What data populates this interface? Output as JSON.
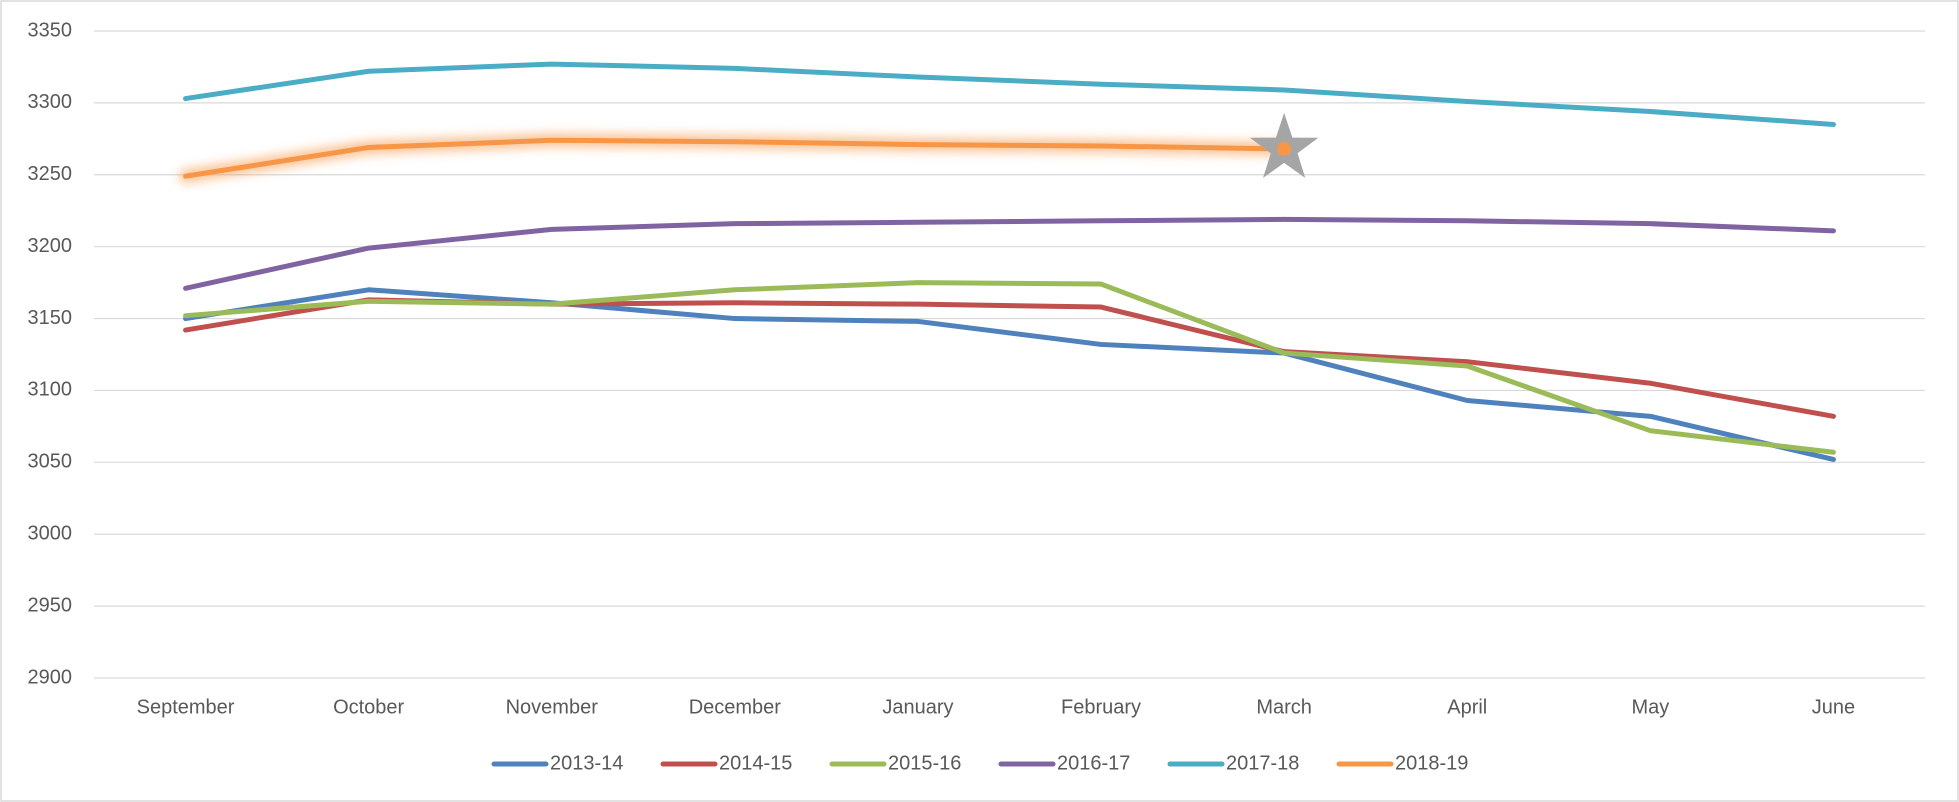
{
  "chart_data": {
    "type": "line",
    "categories": [
      "September",
      "October",
      "November",
      "December",
      "January",
      "February",
      "March",
      "April",
      "May",
      "June"
    ],
    "series": [
      {
        "name": "2013-14",
        "color": "#4f81bd",
        "values": [
          3150,
          3170,
          3161,
          3150,
          3148,
          3132,
          3126,
          3093,
          3082,
          3052
        ]
      },
      {
        "name": "2014-15",
        "color": "#c0504d",
        "values": [
          3142,
          3163,
          3160,
          3161,
          3160,
          3158,
          3127,
          3120,
          3105,
          3082
        ]
      },
      {
        "name": "2015-16",
        "color": "#9bbb59",
        "values": [
          3152,
          3162,
          3160,
          3170,
          3175,
          3174,
          3126,
          3117,
          3072,
          3057
        ]
      },
      {
        "name": "2016-17",
        "color": "#8064a2",
        "values": [
          3171,
          3199,
          3212,
          3216,
          3217,
          3218,
          3219,
          3218,
          3216,
          3211
        ]
      },
      {
        "name": "2017-18",
        "color": "#4bacc6",
        "values": [
          3303,
          3322,
          3327,
          3324,
          3318,
          3313,
          3309,
          3301,
          3294,
          3285
        ]
      },
      {
        "name": "2018-19",
        "color": "#f79646",
        "glow": true,
        "marker": "star",
        "values": [
          3249,
          3269,
          3274,
          3273,
          3271,
          3270,
          3268,
          null,
          null,
          null
        ]
      }
    ],
    "ylim": [
      2900,
      3350
    ],
    "yticks": [
      2900,
      2950,
      3000,
      3050,
      3100,
      3150,
      3200,
      3250,
      3300,
      3350
    ],
    "grid": true,
    "legend": "bottom"
  }
}
